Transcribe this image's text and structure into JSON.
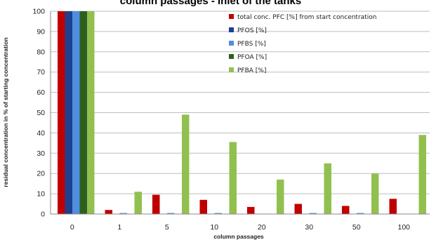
{
  "chart_data": {
    "type": "bar",
    "title": "column passages - Inlet of the tanks",
    "xlabel": "column passages",
    "ylabel": "residual concentration in % of starting concentration",
    "categories": [
      "0",
      "1",
      "5",
      "10",
      "20",
      "30",
      "50",
      "100"
    ],
    "yticks": [
      "0",
      "10",
      "20",
      "30",
      "40",
      "50",
      "60",
      "70",
      "80",
      "90",
      "100"
    ],
    "ylim": [
      0,
      100
    ],
    "grid": true,
    "legend_position": "top-right",
    "series": [
      {
        "name": "total conc. PFC [%] from start concentration",
        "color": "#c00000",
        "values": [
          100,
          2,
          9.5,
          7,
          3.5,
          5,
          4,
          7.5
        ]
      },
      {
        "name": "PFOS [%]",
        "color": "#1f3f8f",
        "values": [
          100,
          0,
          0,
          0,
          0,
          0,
          0,
          0
        ]
      },
      {
        "name": "PFBS [%]",
        "color": "#4f8fdf",
        "values": [
          100,
          0.5,
          0.5,
          0.5,
          0,
          0.5,
          0.5,
          0
        ]
      },
      {
        "name": "PFOA [%]",
        "color": "#2f5f1f",
        "values": [
          100,
          0,
          0,
          0,
          0,
          0,
          0,
          0
        ]
      },
      {
        "name": "PFBA [%]",
        "color": "#92c050",
        "values": [
          100,
          11,
          49,
          35.5,
          17,
          25,
          20,
          39
        ]
      }
    ]
  }
}
